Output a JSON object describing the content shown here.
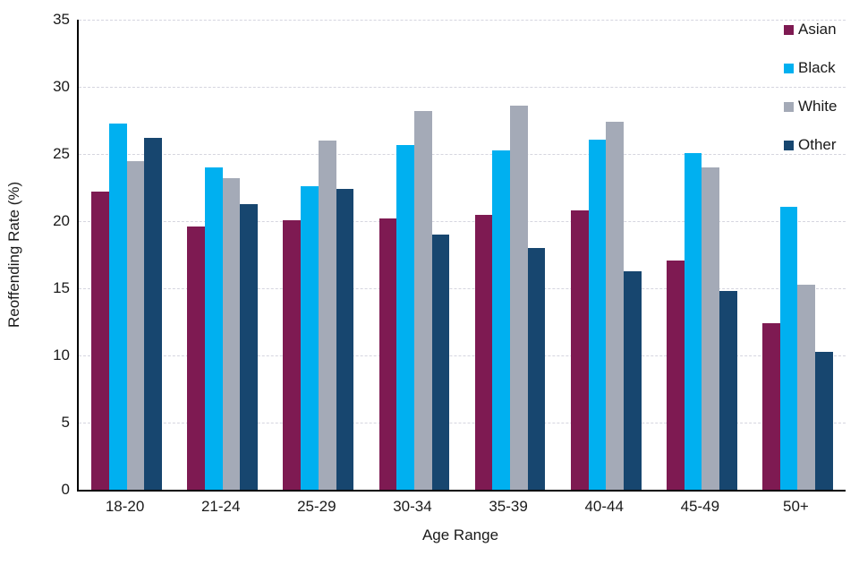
{
  "chart_data": {
    "type": "bar",
    "title": "",
    "xlabel": "Age Range",
    "ylabel": "Reoffending Rate (%)",
    "categories": [
      "18-20",
      "21-24",
      "25-29",
      "30-34",
      "35-39",
      "40-44",
      "45-49",
      "50+"
    ],
    "series": [
      {
        "name": "Asian",
        "color": "#7E1A52",
        "values": [
          22.2,
          19.6,
          20.1,
          20.2,
          20.5,
          20.8,
          17.1,
          12.4
        ]
      },
      {
        "name": "Black",
        "color": "#00B0F0",
        "values": [
          27.3,
          24.0,
          22.6,
          25.7,
          25.3,
          26.1,
          25.1,
          21.1
        ]
      },
      {
        "name": "White",
        "color": "#A4AAB7",
        "values": [
          24.5,
          23.2,
          26.0,
          28.2,
          28.6,
          27.4,
          24.0,
          15.3
        ]
      },
      {
        "name": "Other",
        "color": "#17466F",
        "values": [
          26.2,
          21.3,
          22.4,
          19.0,
          18.0,
          16.3,
          14.8,
          10.3
        ]
      }
    ],
    "ylim": [
      0,
      35
    ],
    "ytick_step": 5,
    "grid": true,
    "gridline_color": "#D5D5DF",
    "axis_color": "#000000",
    "legend_position": "top-right"
  }
}
